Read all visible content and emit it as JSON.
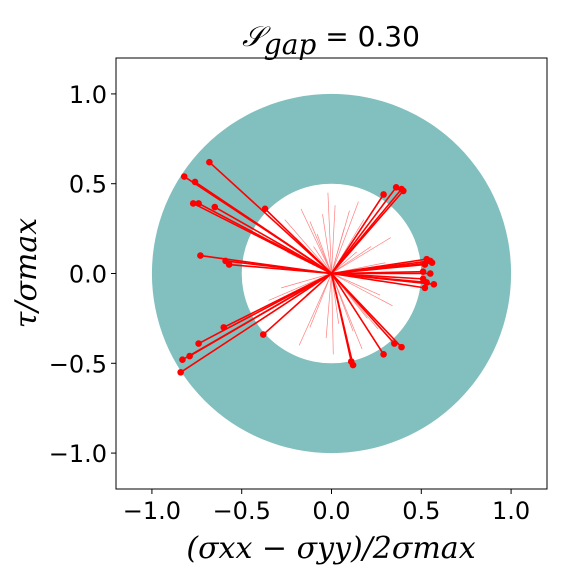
{
  "chart_data": {
    "type": "scatter",
    "title": {
      "symbol": "𝒮",
      "subscript": "gap",
      "value_text": " = 0.30"
    },
    "xlabel": "(σxx − σyy)/2σmax",
    "ylabel": "τ/σmax",
    "xlim": [
      -1.2,
      1.2
    ],
    "ylim": [
      -1.2,
      1.2
    ],
    "xticks": [
      -1.0,
      -0.5,
      0.0,
      0.5,
      1.0
    ],
    "yticks": [
      -1.0,
      -0.5,
      0.0,
      0.5,
      1.0
    ],
    "xtick_labels": [
      "−1.0",
      "−0.5",
      "0.0",
      "0.5",
      "1.0"
    ],
    "ytick_labels": [
      "−1.0",
      "−0.5",
      "0.0",
      "0.5",
      "1.0"
    ],
    "annulus": {
      "inner_radius": 0.5,
      "outer_radius": 1.0,
      "color": "#82bfbf"
    },
    "inner_fill_color": "#ffffff",
    "outlier_color": "#ff0000",
    "faint_line_color": "#ff8080",
    "outlier_points": [
      {
        "x": -0.68,
        "y": 0.62
      },
      {
        "x": -0.82,
        "y": 0.54
      },
      {
        "x": -0.76,
        "y": 0.51
      },
      {
        "x": -0.77,
        "y": 0.39
      },
      {
        "x": -0.74,
        "y": 0.39
      },
      {
        "x": -0.65,
        "y": 0.37
      },
      {
        "x": -0.37,
        "y": 0.36
      },
      {
        "x": -0.73,
        "y": 0.1
      },
      {
        "x": -0.59,
        "y": 0.07
      },
      {
        "x": -0.57,
        "y": 0.05
      },
      {
        "x": 0.29,
        "y": 0.44
      },
      {
        "x": 0.36,
        "y": 0.48
      },
      {
        "x": 0.39,
        "y": 0.47
      },
      {
        "x": 0.4,
        "y": 0.46
      },
      {
        "x": 0.53,
        "y": 0.08
      },
      {
        "x": 0.55,
        "y": 0.07
      },
      {
        "x": 0.56,
        "y": 0.06
      },
      {
        "x": 0.52,
        "y": 0.05
      },
      {
        "x": 0.51,
        "y": 0.01
      },
      {
        "x": 0.55,
        "y": 0.0
      },
      {
        "x": 0.51,
        "y": -0.03
      },
      {
        "x": 0.53,
        "y": -0.05
      },
      {
        "x": 0.57,
        "y": -0.06
      },
      {
        "x": 0.52,
        "y": -0.08
      },
      {
        "x": -0.84,
        "y": -0.55
      },
      {
        "x": -0.83,
        "y": -0.48
      },
      {
        "x": -0.79,
        "y": -0.46
      },
      {
        "x": -0.74,
        "y": -0.39
      },
      {
        "x": -0.6,
        "y": -0.3
      },
      {
        "x": -0.38,
        "y": -0.34
      },
      {
        "x": 0.12,
        "y": -0.51
      },
      {
        "x": 0.11,
        "y": -0.49
      },
      {
        "x": 0.29,
        "y": -0.45
      },
      {
        "x": 0.35,
        "y": -0.39
      },
      {
        "x": 0.39,
        "y": -0.41
      }
    ],
    "faint_lines": [
      {
        "x": -0.05,
        "y": 0.33
      },
      {
        "x": 0.02,
        "y": 0.38
      },
      {
        "x": -0.12,
        "y": 0.29
      },
      {
        "x": 0.1,
        "y": 0.35
      },
      {
        "x": -0.2,
        "y": 0.2
      },
      {
        "x": 0.18,
        "y": 0.3
      },
      {
        "x": -0.25,
        "y": 0.12
      },
      {
        "x": 0.22,
        "y": 0.15
      },
      {
        "x": -0.3,
        "y": 0.03
      },
      {
        "x": 0.3,
        "y": 0.06
      },
      {
        "x": -0.28,
        "y": -0.08
      },
      {
        "x": 0.27,
        "y": -0.12
      },
      {
        "x": -0.22,
        "y": -0.2
      },
      {
        "x": 0.2,
        "y": -0.25
      },
      {
        "x": -0.12,
        "y": -0.3
      },
      {
        "x": 0.12,
        "y": -0.32
      },
      {
        "x": -0.03,
        "y": -0.36
      },
      {
        "x": 0.04,
        "y": -0.28
      },
      {
        "x": -0.08,
        "y": 0.22
      },
      {
        "x": 0.07,
        "y": 0.25
      },
      {
        "x": -0.17,
        "y": 0.36
      },
      {
        "x": 0.15,
        "y": 0.4
      },
      {
        "x": -0.33,
        "y": 0.18
      },
      {
        "x": 0.33,
        "y": 0.2
      },
      {
        "x": -0.35,
        "y": -0.15
      },
      {
        "x": 0.34,
        "y": -0.18
      },
      {
        "x": -0.18,
        "y": -0.4
      },
      {
        "x": 0.17,
        "y": -0.42
      },
      {
        "x": -0.02,
        "y": 0.45
      },
      {
        "x": 0.01,
        "y": -0.45
      },
      {
        "x": -0.1,
        "y": 0.15
      },
      {
        "x": 0.1,
        "y": -0.15
      },
      {
        "x": -0.14,
        "y": -0.12
      },
      {
        "x": 0.14,
        "y": 0.12
      },
      {
        "x": -0.26,
        "y": 0.3
      },
      {
        "x": 0.26,
        "y": -0.31
      }
    ]
  }
}
